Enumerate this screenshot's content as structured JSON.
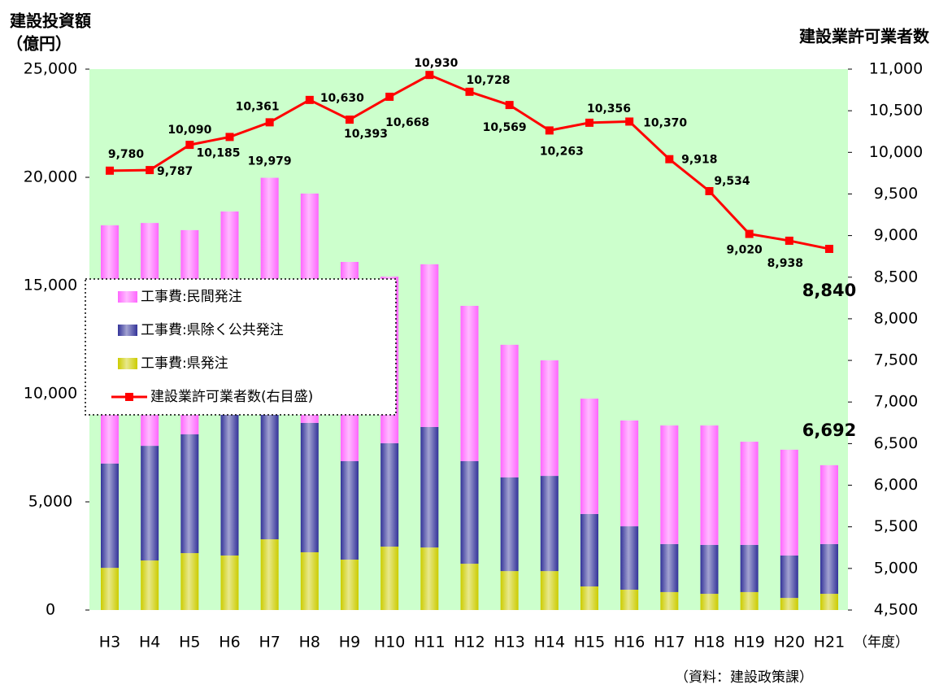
{
  "chart_data": {
    "type": "bar",
    "title_left": "建設投資額",
    "title_left_unit": "（億円）",
    "title_right": "建設業許可業者数",
    "x_unit": "（年度）",
    "source": "（資料：建設政策課）",
    "categories": [
      "H3",
      "H4",
      "H5",
      "H6",
      "H7",
      "H8",
      "H9",
      "H10",
      "H11",
      "H12",
      "H13",
      "H14",
      "H15",
      "H16",
      "H17",
      "H18",
      "H19",
      "H20",
      "H21"
    ],
    "stacked": true,
    "series": [
      {
        "name": "工事費:県発注",
        "color": "#cccc00",
        "values": [
          1950,
          2290,
          2630,
          2520,
          3270,
          2670,
          2330,
          2930,
          2890,
          2140,
          1800,
          1800,
          1090,
          940,
          830,
          750,
          830,
          560,
          750
        ]
      },
      {
        "name": "工事費:県除く公共発注",
        "color": "#333399",
        "values": [
          4820,
          5300,
          5490,
          6980,
          6730,
          5980,
          4550,
          4780,
          5570,
          4740,
          4330,
          4400,
          3350,
          2930,
          2220,
          2260,
          2180,
          1960,
          2300
        ]
      },
      {
        "name": "工事費:民間発注",
        "color": "#ff66ff",
        "values": [
          11010,
          10300,
          9440,
          8920,
          9979,
          10600,
          9210,
          7700,
          7520,
          7180,
          6130,
          5340,
          5330,
          4890,
          5480,
          5520,
          4770,
          4890,
          3642
        ]
      },
      {
        "name": "建設業許可業者数(右目盛)",
        "type": "line",
        "axis": "y2",
        "color": "#ff0000",
        "values": [
          9780,
          9787,
          10090,
          10185,
          10361,
          10630,
          10393,
          10668,
          10930,
          10728,
          10569,
          10263,
          10356,
          10370,
          9918,
          9534,
          9020,
          8938,
          8840
        ],
        "value_labels": [
          "9,780",
          "9,787",
          "10,090",
          "10,185",
          "10,361",
          "10,630",
          "10,393",
          "10,668",
          "10,930",
          "10,728",
          "10,569",
          "10,263",
          "10,356",
          "10,370",
          "9,918",
          "9,534",
          "9,020",
          "8,938",
          "8,840"
        ]
      }
    ],
    "annotations": [
      {
        "category": "H7",
        "text": "19,979"
      },
      {
        "category": "H21",
        "text": "6,692"
      }
    ],
    "ylim": [
      0,
      25000
    ],
    "yticks": [
      0,
      {
        "value": 5000,
        "label": "5,000"
      },
      {
        "value": 10000,
        "label": "10,000"
      },
      {
        "value": 15000,
        "label": "15,000"
      },
      {
        "value": 20000,
        "label": "20,000"
      },
      {
        "value": 25000,
        "label": "25,000"
      }
    ],
    "y2lim": [
      4500,
      11000
    ],
    "y2ticks": [
      {
        "value": 4500,
        "label": "4,500"
      },
      {
        "value": 5000,
        "label": "5,000"
      },
      {
        "value": 5500,
        "label": "5,500"
      },
      {
        "value": 6000,
        "label": "6,000"
      },
      {
        "value": 6500,
        "label": "6,500"
      },
      {
        "value": 7000,
        "label": "7,000"
      },
      {
        "value": 7500,
        "label": "7,500"
      },
      {
        "value": 8000,
        "label": "8,000"
      },
      {
        "value": 8500,
        "label": "8,500"
      },
      {
        "value": 9000,
        "label": "9,000"
      },
      {
        "value": 9500,
        "label": "9,500"
      },
      {
        "value": 10000,
        "label": "10,000"
      },
      {
        "value": 10500,
        "label": "10,500"
      },
      {
        "value": 11000,
        "label": "11,000"
      }
    ],
    "plot_background": "#ccffcc",
    "legend": "left"
  }
}
